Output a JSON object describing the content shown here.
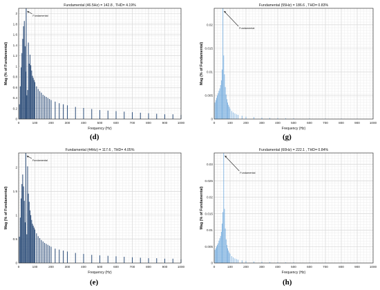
{
  "chart_data": [
    {
      "id": "d",
      "panel_label": "(d)",
      "type": "bar",
      "title": "Fundamental (46.5Hz) = 142.8 , THD= 4.19%",
      "xlabel": "Frequency (Hz)",
      "ylabel": "Mag (% of Fundamental)",
      "annotation": "Fundamental",
      "xlim": [
        0,
        1000
      ],
      "ylim": [
        0,
        2.1
      ],
      "xticks": [
        0,
        100,
        200,
        300,
        400,
        500,
        600,
        700,
        800,
        900,
        1000
      ],
      "yticks": [
        0,
        0.2,
        0.4,
        0.6,
        0.8,
        1,
        1.2,
        1.4,
        1.6,
        1.8,
        2
      ],
      "ytick_labels": [
        "0",
        "0.2",
        "0.4",
        "0.6",
        "0.8",
        "1",
        "1.2",
        "1.4",
        "1.6",
        "1.8",
        "2"
      ],
      "bar_color": "#2f4f7a",
      "bar_width_hz": 4.4,
      "x": [
        5,
        10,
        15,
        20,
        25,
        30,
        35,
        40,
        45,
        50,
        55,
        60,
        65,
        70,
        75,
        80,
        85,
        90,
        95,
        100,
        110,
        120,
        130,
        140,
        150,
        160,
        170,
        180,
        190,
        200,
        225,
        250,
        275,
        300,
        350,
        400,
        450,
        500,
        550,
        600,
        650,
        700,
        750,
        800,
        850,
        900,
        950,
        1000
      ],
      "values": [
        0.28,
        0.62,
        0.98,
        1.25,
        1.52,
        1.76,
        1.86,
        1.38,
        0.9,
        0.45,
        0.55,
        1.45,
        1.05,
        1.22,
        1.02,
        0.92,
        0.82,
        0.78,
        0.74,
        0.7,
        0.62,
        0.57,
        0.53,
        0.5,
        0.46,
        0.44,
        0.42,
        0.4,
        0.38,
        0.36,
        0.33,
        0.3,
        0.28,
        0.26,
        0.23,
        0.21,
        0.19,
        0.17,
        0.16,
        0.15,
        0.14,
        0.13,
        0.12,
        0.11,
        0.1,
        0.09,
        0.09,
        0.08
      ],
      "peak_x": 46.5,
      "peak_value": 2.1
    },
    {
      "id": "g",
      "panel_label": "(g)",
      "type": "bar",
      "title": "Fundamental (55Hz) = 186.6 , THD= 0.83%",
      "xlabel": "Frequency (Hz)",
      "ylabel": "Mag (% of Fundamental)",
      "annotation": "Fundamental",
      "xlim": [
        0,
        1000
      ],
      "ylim": [
        0,
        0.0235
      ],
      "xticks": [
        0,
        100,
        200,
        300,
        400,
        500,
        600,
        700,
        800,
        900,
        1000
      ],
      "yticks": [
        0,
        0.005,
        0.01,
        0.015,
        0.02
      ],
      "ytick_labels": [
        "0",
        "0.005",
        "0.01",
        "0.015",
        "0.02"
      ],
      "bar_color": "#6fa8dc",
      "bar_width_hz": 2.6,
      "x": [
        5,
        10,
        15,
        20,
        25,
        30,
        35,
        40,
        45,
        50,
        60,
        65,
        70,
        75,
        80,
        85,
        90,
        95,
        100,
        110,
        120,
        130,
        140,
        150,
        175,
        200,
        250,
        300,
        350,
        400,
        450,
        500,
        600,
        700,
        800,
        900,
        1000
      ],
      "values": [
        0.0035,
        0.004,
        0.0045,
        0.005,
        0.0055,
        0.006,
        0.0065,
        0.0072,
        0.0082,
        0.0105,
        0.0135,
        0.0095,
        0.0068,
        0.0052,
        0.0042,
        0.0035,
        0.003,
        0.0026,
        0.0022,
        0.0017,
        0.0014,
        0.0012,
        0.001,
        0.0009,
        0.0007,
        0.0005,
        0.0004,
        0.0003,
        0.00025,
        0.0002,
        0.00018,
        0.00015,
        0.00012,
        0.0001,
        9e-05,
        8e-05,
        7e-05
      ],
      "peak_x": 55,
      "peak_value": 0.0235
    },
    {
      "id": "e",
      "panel_label": "(e)",
      "type": "bar",
      "title": "Fundamental (44Hz) = 117.6 , THD= 4.05%",
      "xlabel": "Frequency (Hz)",
      "ylabel": "Mag (% of Fundamental)",
      "annotation": "Fundamental",
      "xlim": [
        0,
        1000
      ],
      "ylim": [
        0,
        2.3
      ],
      "xticks": [
        0,
        100,
        200,
        300,
        400,
        500,
        600,
        700,
        800,
        900,
        1000
      ],
      "yticks": [
        0,
        0.5,
        1,
        1.5,
        2
      ],
      "ytick_labels": [
        "0",
        "0.5",
        "1",
        "1.5",
        "2"
      ],
      "bar_color": "#2f4f7a",
      "bar_width_hz": 4.4,
      "x": [
        5,
        10,
        15,
        20,
        25,
        30,
        35,
        40,
        50,
        55,
        60,
        65,
        70,
        75,
        80,
        85,
        90,
        95,
        100,
        110,
        120,
        130,
        140,
        150,
        160,
        170,
        180,
        190,
        200,
        225,
        250,
        275,
        300,
        350,
        400,
        450,
        500,
        550,
        600,
        650,
        700,
        750,
        800,
        850,
        900,
        950,
        1000
      ],
      "values": [
        0.55,
        0.95,
        1.35,
        1.65,
        1.85,
        1.6,
        1.3,
        0.85,
        0.6,
        2.02,
        1.45,
        1.28,
        1.1,
        1.0,
        0.9,
        0.82,
        0.78,
        0.74,
        0.7,
        0.62,
        0.56,
        0.52,
        0.48,
        0.45,
        0.42,
        0.4,
        0.38,
        0.36,
        0.34,
        0.3,
        0.28,
        0.26,
        0.24,
        0.21,
        0.19,
        0.17,
        0.16,
        0.15,
        0.14,
        0.13,
        0.12,
        0.11,
        0.1,
        0.1,
        0.09,
        0.09,
        0.08
      ],
      "peak_x": 44,
      "peak_value": 2.3
    },
    {
      "id": "h",
      "panel_label": "(h)",
      "type": "bar",
      "title": "Fundamental (60Hz) = 222.1 , THD= 0.84%",
      "xlabel": "Frequency (Hz)",
      "ylabel": "Mag (% of Fundamental)",
      "annotation": "Fundamental",
      "xlim": [
        0,
        1000
      ],
      "ylim": [
        0,
        0.0335
      ],
      "xticks": [
        0,
        100,
        200,
        300,
        400,
        500,
        600,
        700,
        800,
        900,
        1000
      ],
      "yticks": [
        0,
        0.005,
        0.01,
        0.015,
        0.02,
        0.025,
        0.03
      ],
      "ytick_labels": [
        "0",
        "0.005",
        "0.01",
        "0.015",
        "0.02",
        "0.025",
        "0.03"
      ],
      "bar_color": "#6fa8dc",
      "bar_width_hz": 2.6,
      "x": [
        5,
        10,
        15,
        20,
        25,
        30,
        35,
        40,
        45,
        50,
        55,
        65,
        70,
        75,
        80,
        85,
        90,
        95,
        100,
        110,
        120,
        130,
        140,
        150,
        175,
        200,
        250,
        300,
        350,
        400,
        450,
        500,
        600,
        700,
        800,
        900,
        1000
      ],
      "values": [
        0.004,
        0.0045,
        0.005,
        0.0055,
        0.006,
        0.0068,
        0.0075,
        0.0082,
        0.0095,
        0.012,
        0.0155,
        0.0165,
        0.0105,
        0.0072,
        0.0055,
        0.0045,
        0.0038,
        0.0032,
        0.0028,
        0.0021,
        0.0017,
        0.0014,
        0.0012,
        0.001,
        0.0008,
        0.0006,
        0.00045,
        0.00035,
        0.0003,
        0.00025,
        0.0002,
        0.00018,
        0.00014,
        0.00012,
        0.0001,
        9e-05,
        8e-05
      ],
      "peak_x": 60,
      "peak_value": 0.0335
    }
  ]
}
